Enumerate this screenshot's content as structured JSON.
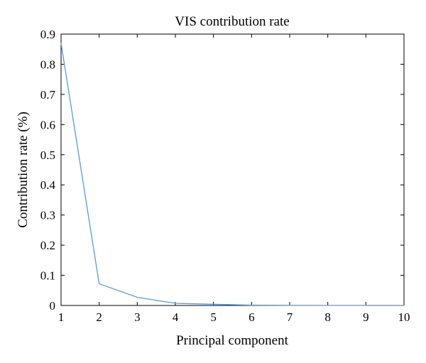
{
  "chart_data": {
    "type": "line",
    "title": "VIS contribution rate",
    "xlabel": "Principal component",
    "ylabel": "Contribution rate (%)",
    "xlim": [
      1,
      10
    ],
    "ylim": [
      0,
      0.9
    ],
    "x_ticks": [
      1,
      2,
      3,
      4,
      5,
      6,
      7,
      8,
      9,
      10
    ],
    "x_tick_labels": [
      "1",
      "2",
      "3",
      "4",
      "5",
      "6",
      "7",
      "8",
      "9",
      "10"
    ],
    "y_ticks": [
      0,
      0.1,
      0.2,
      0.3,
      0.4,
      0.5,
      0.6,
      0.7,
      0.8,
      0.9
    ],
    "y_tick_labels": [
      "0",
      "0.1",
      "0.2",
      "0.3",
      "0.4",
      "0.5",
      "0.6",
      "0.7",
      "0.8",
      "0.9"
    ],
    "grid": false,
    "legend": "none",
    "line_color": "#5b9bd5",
    "series": [
      {
        "x": [
          1,
          2,
          3,
          4,
          5,
          6,
          7,
          8,
          9,
          10
        ],
        "values": [
          0.87,
          0.072,
          0.027,
          0.007,
          0.004,
          0.001,
          0.0005,
          0.0003,
          0.0002,
          0.0001
        ]
      }
    ]
  }
}
